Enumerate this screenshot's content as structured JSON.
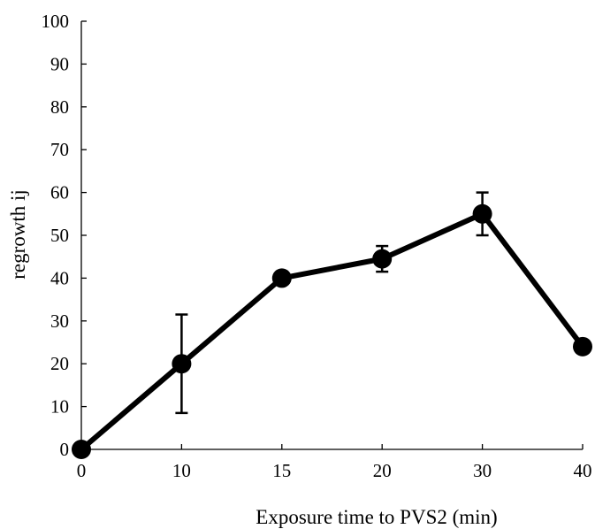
{
  "chart_data": {
    "type": "line",
    "title": "",
    "xlabel": "Exposure time to PVS2 (min)",
    "ylabel": "regrowth ij",
    "ylim": [
      0,
      100
    ],
    "y_ticks": [
      "0",
      "10",
      "20",
      "30",
      "40",
      "50",
      "60",
      "70",
      "80",
      "90",
      "100"
    ],
    "categories": [
      "0",
      "10",
      "15",
      "20",
      "30",
      "40"
    ],
    "grid": false,
    "legend": "none",
    "series": [
      {
        "color": "#000000",
        "values": [
          0,
          20,
          40,
          44.5,
          55,
          24
        ],
        "error": [
          0,
          11.5,
          0,
          3,
          5,
          0
        ]
      }
    ]
  }
}
